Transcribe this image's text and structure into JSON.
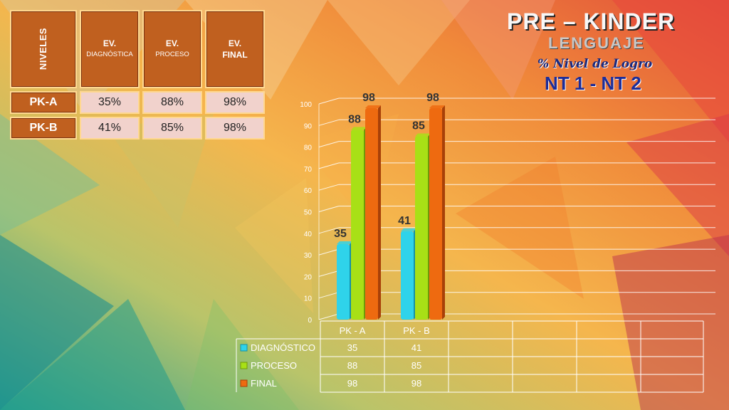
{
  "title": {
    "line1": "PRE – KINDER",
    "line2": "LENGUAJE",
    "line3": "% Nivel de Logro",
    "line4": "NT 1 - NT 2"
  },
  "table": {
    "headers": {
      "niveles": "NIVELES",
      "ev": "EV.",
      "diag": "DIAGNÓSTICA",
      "proceso": "PROCESO",
      "final": "FINAL"
    },
    "rows": [
      {
        "nivel": "PK-A",
        "diag": "35%",
        "proceso": "88%",
        "final": "98%"
      },
      {
        "nivel": "PK-B",
        "diag": "41%",
        "proceso": "85%",
        "final": "98%"
      }
    ]
  },
  "colors": {
    "diagnostico": "#2fd3ea",
    "proceso": "#a8e016",
    "final": "#ee6a10"
  },
  "chart_data": {
    "type": "bar",
    "categories": [
      "PK - A",
      "PK - B"
    ],
    "series": [
      {
        "name": "DIAGNÓSTICO",
        "values": [
          35,
          41
        ]
      },
      {
        "name": "PROCESO",
        "values": [
          88,
          85
        ]
      },
      {
        "name": "FINAL",
        "values": [
          98,
          98
        ]
      }
    ],
    "ylim": [
      0,
      100
    ],
    "yticks": [
      0,
      10,
      20,
      30,
      40,
      50,
      60,
      70,
      80,
      90,
      100
    ],
    "grid": true,
    "legend": "data-table-below"
  }
}
